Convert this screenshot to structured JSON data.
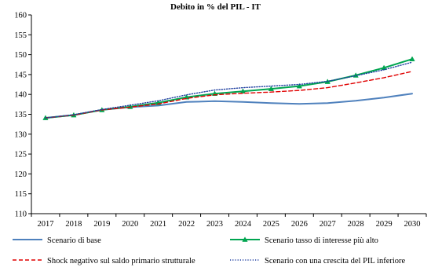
{
  "chart_data": {
    "type": "line",
    "title": "Debito in  % del PIL  - IT",
    "xlabel": "",
    "ylabel": "",
    "ylim": [
      110,
      160
    ],
    "yticks": [
      110,
      115,
      120,
      125,
      130,
      135,
      140,
      145,
      150,
      155,
      160
    ],
    "categories": [
      "2017",
      "2018",
      "2019",
      "2020",
      "2021",
      "2022",
      "2023",
      "2024",
      "2025",
      "2026",
      "2027",
      "2028",
      "2029",
      "2030"
    ],
    "grid": false,
    "legend_position": "bottom",
    "series": [
      {
        "name": "Scenario di base",
        "color": "#4f81bd",
        "style": "solid",
        "marker": "none",
        "values": [
          134.1,
          134.8,
          136.1,
          136.8,
          137.2,
          138.1,
          138.3,
          138.1,
          137.8,
          137.6,
          137.8,
          138.4,
          139.2,
          140.2
        ]
      },
      {
        "name": "Scenario tasso di interesse più alto",
        "color": "#00a550",
        "style": "solid",
        "marker": "triangle",
        "values": [
          134.1,
          134.8,
          136.1,
          136.9,
          137.9,
          139.3,
          140.2,
          140.8,
          141.4,
          142.1,
          143.2,
          144.8,
          146.7,
          148.9
        ]
      },
      {
        "name": "Shock negativo sul saldo primario strutturale",
        "color": "#e00000",
        "style": "dashed",
        "marker": "none",
        "values": [
          134.1,
          134.8,
          136.1,
          136.8,
          137.6,
          139.0,
          139.9,
          140.3,
          140.6,
          141.0,
          141.7,
          142.9,
          144.2,
          145.8
        ]
      },
      {
        "name": "Scenario con una crescita del PIL inferiore",
        "color": "#1f3fa0",
        "style": "dotted",
        "marker": "none",
        "values": [
          134.1,
          134.9,
          136.2,
          137.3,
          138.4,
          139.9,
          141.1,
          141.7,
          142.1,
          142.5,
          143.3,
          144.7,
          146.2,
          148.1
        ]
      }
    ]
  }
}
